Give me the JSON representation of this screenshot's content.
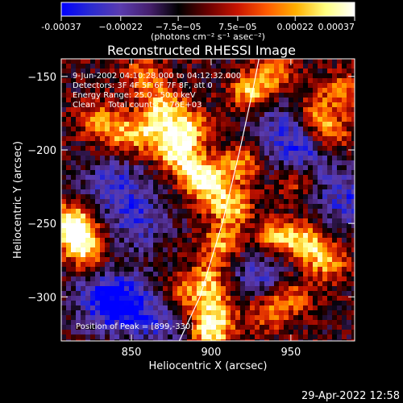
{
  "chart_data": {
    "type": "heatmap",
    "title": "Reconstructed RHESSI Image",
    "xlabel": "Heliocentric X (arcsec)",
    "ylabel": "Heliocentric Y (arcsec)",
    "xlim": [
      806,
      990
    ],
    "ylim": [
      -330,
      -138
    ],
    "xticks": [
      850,
      900,
      950
    ],
    "xtick_labels": [
      "850",
      "900",
      "950"
    ],
    "yticks": [
      -150,
      -200,
      -250,
      -300
    ],
    "ytick_labels": [
      "−150",
      "−200",
      "−250",
      "−300"
    ],
    "colorbar": {
      "range": [
        -0.00037,
        0.00037
      ],
      "tick_values": [
        -0.00037,
        -0.00022,
        -7.5e-05,
        7.5e-05,
        0.00022,
        0.00037
      ],
      "tick_labels": [
        "-0.00037",
        "−0.00022",
        "−7.5e−05",
        "7.5e−05",
        "0.00022",
        "0.00037"
      ],
      "unit_label": "(photons cm⁻² s⁻¹ asec⁻²)",
      "colors": [
        "#0000ff",
        "#2a2ad0",
        "#5a3cb0",
        "#46206e",
        "#000000",
        "#6a0000",
        "#c81400",
        "#ff5a00",
        "#ffb000",
        "#ffff80",
        "#ffffff"
      ]
    },
    "annotations": [
      "9-Jun-2002 04:10:28.000 to 04:12:32.000",
      "Detectors: 3F 4F 5F 6F 7F 8F, att 0",
      "Energy Range: 25.0 - 50.0 keV",
      "Clean     Total counts: 1.76E+03"
    ],
    "peak_label": "Position of Peak = [899,-330]",
    "limb_curve": [
      [
        880,
        -330
      ],
      [
        893,
        -300
      ],
      [
        907,
        -250
      ],
      [
        918,
        -200
      ],
      [
        926,
        -160
      ],
      [
        930,
        -138
      ]
    ],
    "bright_regions": [
      {
        "x": 862,
        "y": -188,
        "level": 0.7
      },
      {
        "x": 870,
        "y": -170,
        "level": 0.8
      },
      {
        "x": 878,
        "y": -200,
        "level": 0.9
      },
      {
        "x": 885,
        "y": -185,
        "level": 0.85
      },
      {
        "x": 890,
        "y": -215,
        "level": 0.8
      },
      {
        "x": 900,
        "y": -225,
        "level": 0.75
      },
      {
        "x": 912,
        "y": -240,
        "level": 0.8
      },
      {
        "x": 906,
        "y": -265,
        "level": 0.7
      },
      {
        "x": 898,
        "y": -290,
        "level": 0.75
      },
      {
        "x": 902,
        "y": -310,
        "level": 0.8
      },
      {
        "x": 899,
        "y": -325,
        "level": 0.9
      },
      {
        "x": 918,
        "y": -210,
        "level": 0.7
      },
      {
        "x": 925,
        "y": -160,
        "level": 0.8
      },
      {
        "x": 816,
        "y": -258,
        "level": 0.9
      },
      {
        "x": 812,
        "y": -248,
        "level": 0.8
      },
      {
        "x": 822,
        "y": -270,
        "level": 0.7
      },
      {
        "x": 845,
        "y": -190,
        "level": 0.6
      },
      {
        "x": 830,
        "y": -180,
        "level": 0.6
      },
      {
        "x": 940,
        "y": -260,
        "level": 0.7
      },
      {
        "x": 958,
        "y": -262,
        "level": 0.8
      },
      {
        "x": 972,
        "y": -275,
        "level": 0.75
      },
      {
        "x": 975,
        "y": -190,
        "level": 0.7
      },
      {
        "x": 965,
        "y": -175,
        "level": 0.6
      },
      {
        "x": 982,
        "y": -160,
        "level": 0.55
      },
      {
        "x": 950,
        "y": -300,
        "level": 0.55
      },
      {
        "x": 935,
        "y": -310,
        "level": 0.55
      },
      {
        "x": 955,
        "y": -220,
        "level": 0.55
      },
      {
        "x": 880,
        "y": -300,
        "level": 0.6
      },
      {
        "x": 858,
        "y": -150,
        "level": 0.55
      },
      {
        "x": 940,
        "y": -148,
        "level": 0.55
      }
    ],
    "dim_regions": [
      {
        "x": 840,
        "y": -225,
        "level": -0.6
      },
      {
        "x": 855,
        "y": -250,
        "level": -0.5
      },
      {
        "x": 830,
        "y": -300,
        "level": -0.5
      },
      {
        "x": 845,
        "y": -305,
        "level": -0.7
      },
      {
        "x": 960,
        "y": -205,
        "level": -0.6
      },
      {
        "x": 945,
        "y": -185,
        "level": -0.5
      },
      {
        "x": 985,
        "y": -235,
        "level": -0.6
      },
      {
        "x": 930,
        "y": -285,
        "level": -0.55
      },
      {
        "x": 870,
        "y": -315,
        "level": -0.5
      }
    ]
  },
  "footer": {
    "timestamp": "29-Apr-2022 12:58"
  }
}
